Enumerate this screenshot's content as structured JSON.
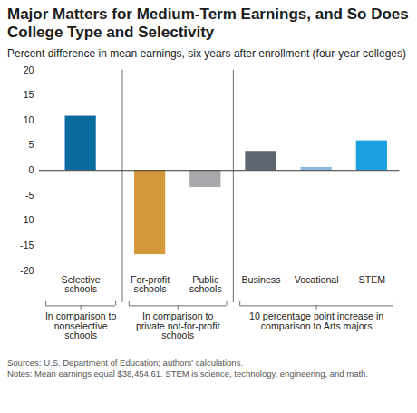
{
  "chart_data": {
    "type": "bar",
    "title": "Major Matters for Medium-Term Earnings, and So Does College Type and Selectivity",
    "subtitle": "Percent difference in mean earnings, six years after enrollment (four-year colleges)",
    "categories": [
      "Selective schools",
      "For-profit schools",
      "Public schools",
      "Business",
      "Vocational",
      "STEM"
    ],
    "values": [
      10.8,
      -16.8,
      -3.4,
      3.8,
      0.6,
      5.9
    ],
    "colors": [
      "#0a6b9e",
      "#d4993a",
      "#a7a9ac",
      "#5d6670",
      "#8ab8e0",
      "#1a9fe0"
    ],
    "ylim": [
      -20,
      20
    ],
    "yticks": [
      -20,
      -15,
      -10,
      -5,
      0,
      5,
      10,
      15,
      20
    ],
    "grid": false,
    "groups": [
      {
        "label": "In comparison to nonselective schools",
        "categories": [
          "Selective schools"
        ]
      },
      {
        "label": "In comparison to private not-for-profit schools",
        "categories": [
          "For-profit schools",
          "Public schools"
        ]
      },
      {
        "label": "10 percentage point increase in comparison to Arts majors",
        "categories": [
          "Business",
          "Vocational",
          "STEM"
        ]
      }
    ],
    "sources": "Sources: U.S. Department of Education; authors' calculations.",
    "notes": "Notes: Mean earnings equal $38,454.61. STEM is science, technology, engineering, and math."
  }
}
